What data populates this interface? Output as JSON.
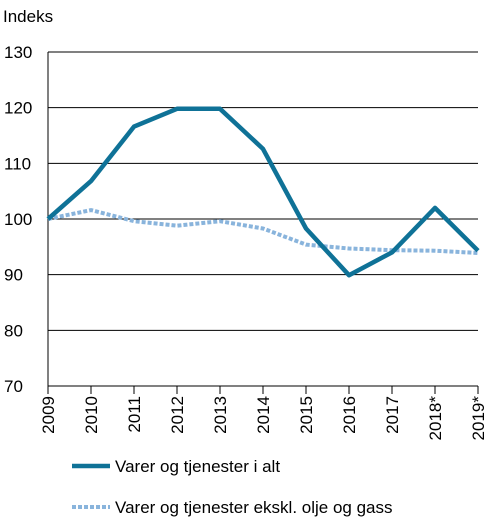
{
  "chart_data": {
    "type": "line",
    "title": "",
    "xlabel": "",
    "ylabel": "Indeks",
    "ylim": [
      70,
      130
    ],
    "yticks": [
      "70",
      "80",
      "90",
      "100",
      "110",
      "120",
      "130"
    ],
    "grid": "horizontal",
    "legend_position": "bottom",
    "categories": [
      "2009",
      "2010",
      "2011",
      "2012",
      "2013",
      "2014",
      "2015",
      "2016",
      "2017",
      "2018*",
      "2019*"
    ],
    "series": [
      {
        "name": "Varer og tjenester i alt",
        "style": "solid",
        "color": "#0f7297",
        "values": [
          100,
          106.8,
          116.6,
          119.8,
          119.8,
          112.6,
          98.3,
          89.9,
          94.0,
          102.0,
          94.3
        ]
      },
      {
        "name": "Varer og tjenester ekskl. olje og gass",
        "style": "dotted",
        "color": "#89b4dc",
        "values": [
          100,
          101.6,
          99.6,
          98.8,
          99.6,
          98.3,
          95.4,
          94.7,
          94.4,
          94.3,
          93.9
        ]
      }
    ]
  }
}
